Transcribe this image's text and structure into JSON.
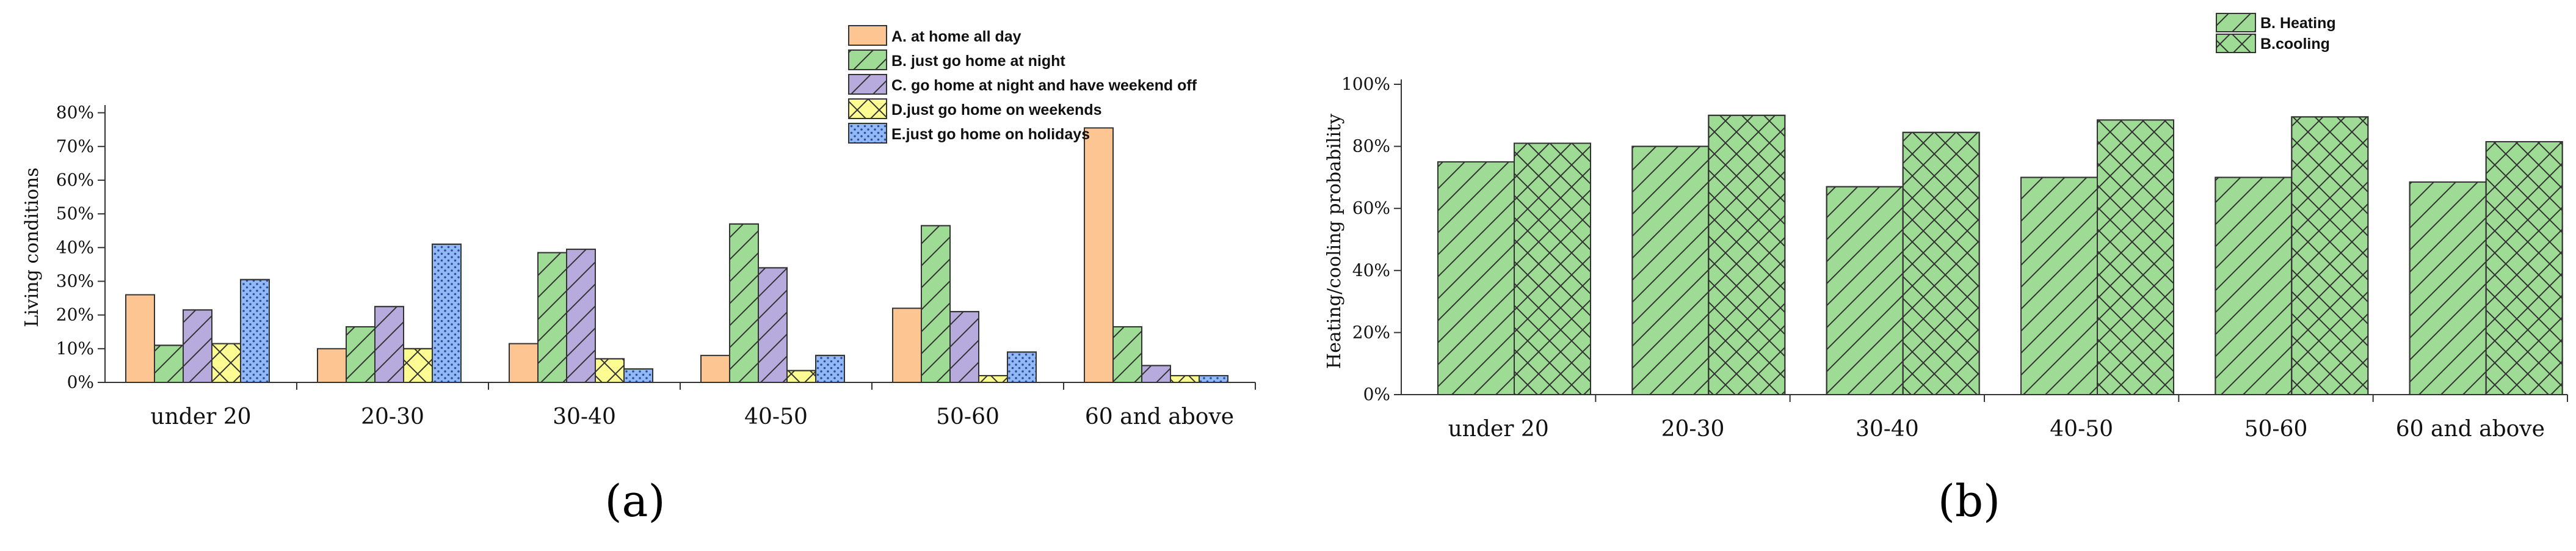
{
  "colors": {
    "A": "#FCC592",
    "B": "#9EDB94",
    "C": "#B7ABDD",
    "D": "#FCFC92",
    "E": "#92B8F6"
  },
  "panels": {
    "a_label": "(a)",
    "b_label": "(b)"
  },
  "chart_data": [
    {
      "type": "bar",
      "panel": "a",
      "title": "",
      "xlabel": "",
      "ylabel": "Living conditions",
      "ylim": [
        0,
        85
      ],
      "yticks": [
        "0%",
        "10%",
        "20%",
        "30%",
        "40%",
        "50%",
        "60%",
        "70%",
        "80%"
      ],
      "categories": [
        "under 20",
        "20-30",
        "30-40",
        "40-50",
        "50-60",
        "60 and above"
      ],
      "legend_position": "top-right",
      "series": [
        {
          "name": "A. at home all day",
          "pattern": "solid",
          "values": [
            26,
            10,
            11.5,
            8,
            22,
            75.5
          ]
        },
        {
          "name": "B. just go home at night",
          "pattern": "diagonal",
          "values": [
            11,
            16.5,
            38.5,
            47,
            46.5,
            16.5
          ]
        },
        {
          "name": "C. go home at night and have weekend off",
          "pattern": "diagonal",
          "values": [
            21.5,
            22.5,
            39.5,
            34,
            21,
            5
          ]
        },
        {
          "name": "D.just go home on weekends",
          "pattern": "crosshatch",
          "values": [
            11.5,
            10,
            7,
            3.5,
            2,
            2
          ]
        },
        {
          "name": "E.just go home on holidays",
          "pattern": "dots",
          "values": [
            30.5,
            41,
            4,
            8,
            9,
            2
          ]
        }
      ]
    },
    {
      "type": "bar",
      "panel": "b",
      "title": "",
      "xlabel": "",
      "ylabel": "Heating/cooling probability",
      "ylim": [
        0,
        100
      ],
      "yticks": [
        "0%",
        "20%",
        "40%",
        "60%",
        "80%",
        "100%"
      ],
      "categories": [
        "under 20",
        "20-30",
        "30-40",
        "40-50",
        "50-60",
        "60 and above"
      ],
      "legend_position": "top-center",
      "series": [
        {
          "name": "B. Heating",
          "pattern": "diagonal",
          "values": [
            75,
            80,
            67,
            70,
            70,
            68.5
          ]
        },
        {
          "name": "B.cooling",
          "pattern": "crosshatch",
          "values": [
            81,
            90,
            84.5,
            88.5,
            89.5,
            81.5
          ]
        }
      ]
    }
  ]
}
